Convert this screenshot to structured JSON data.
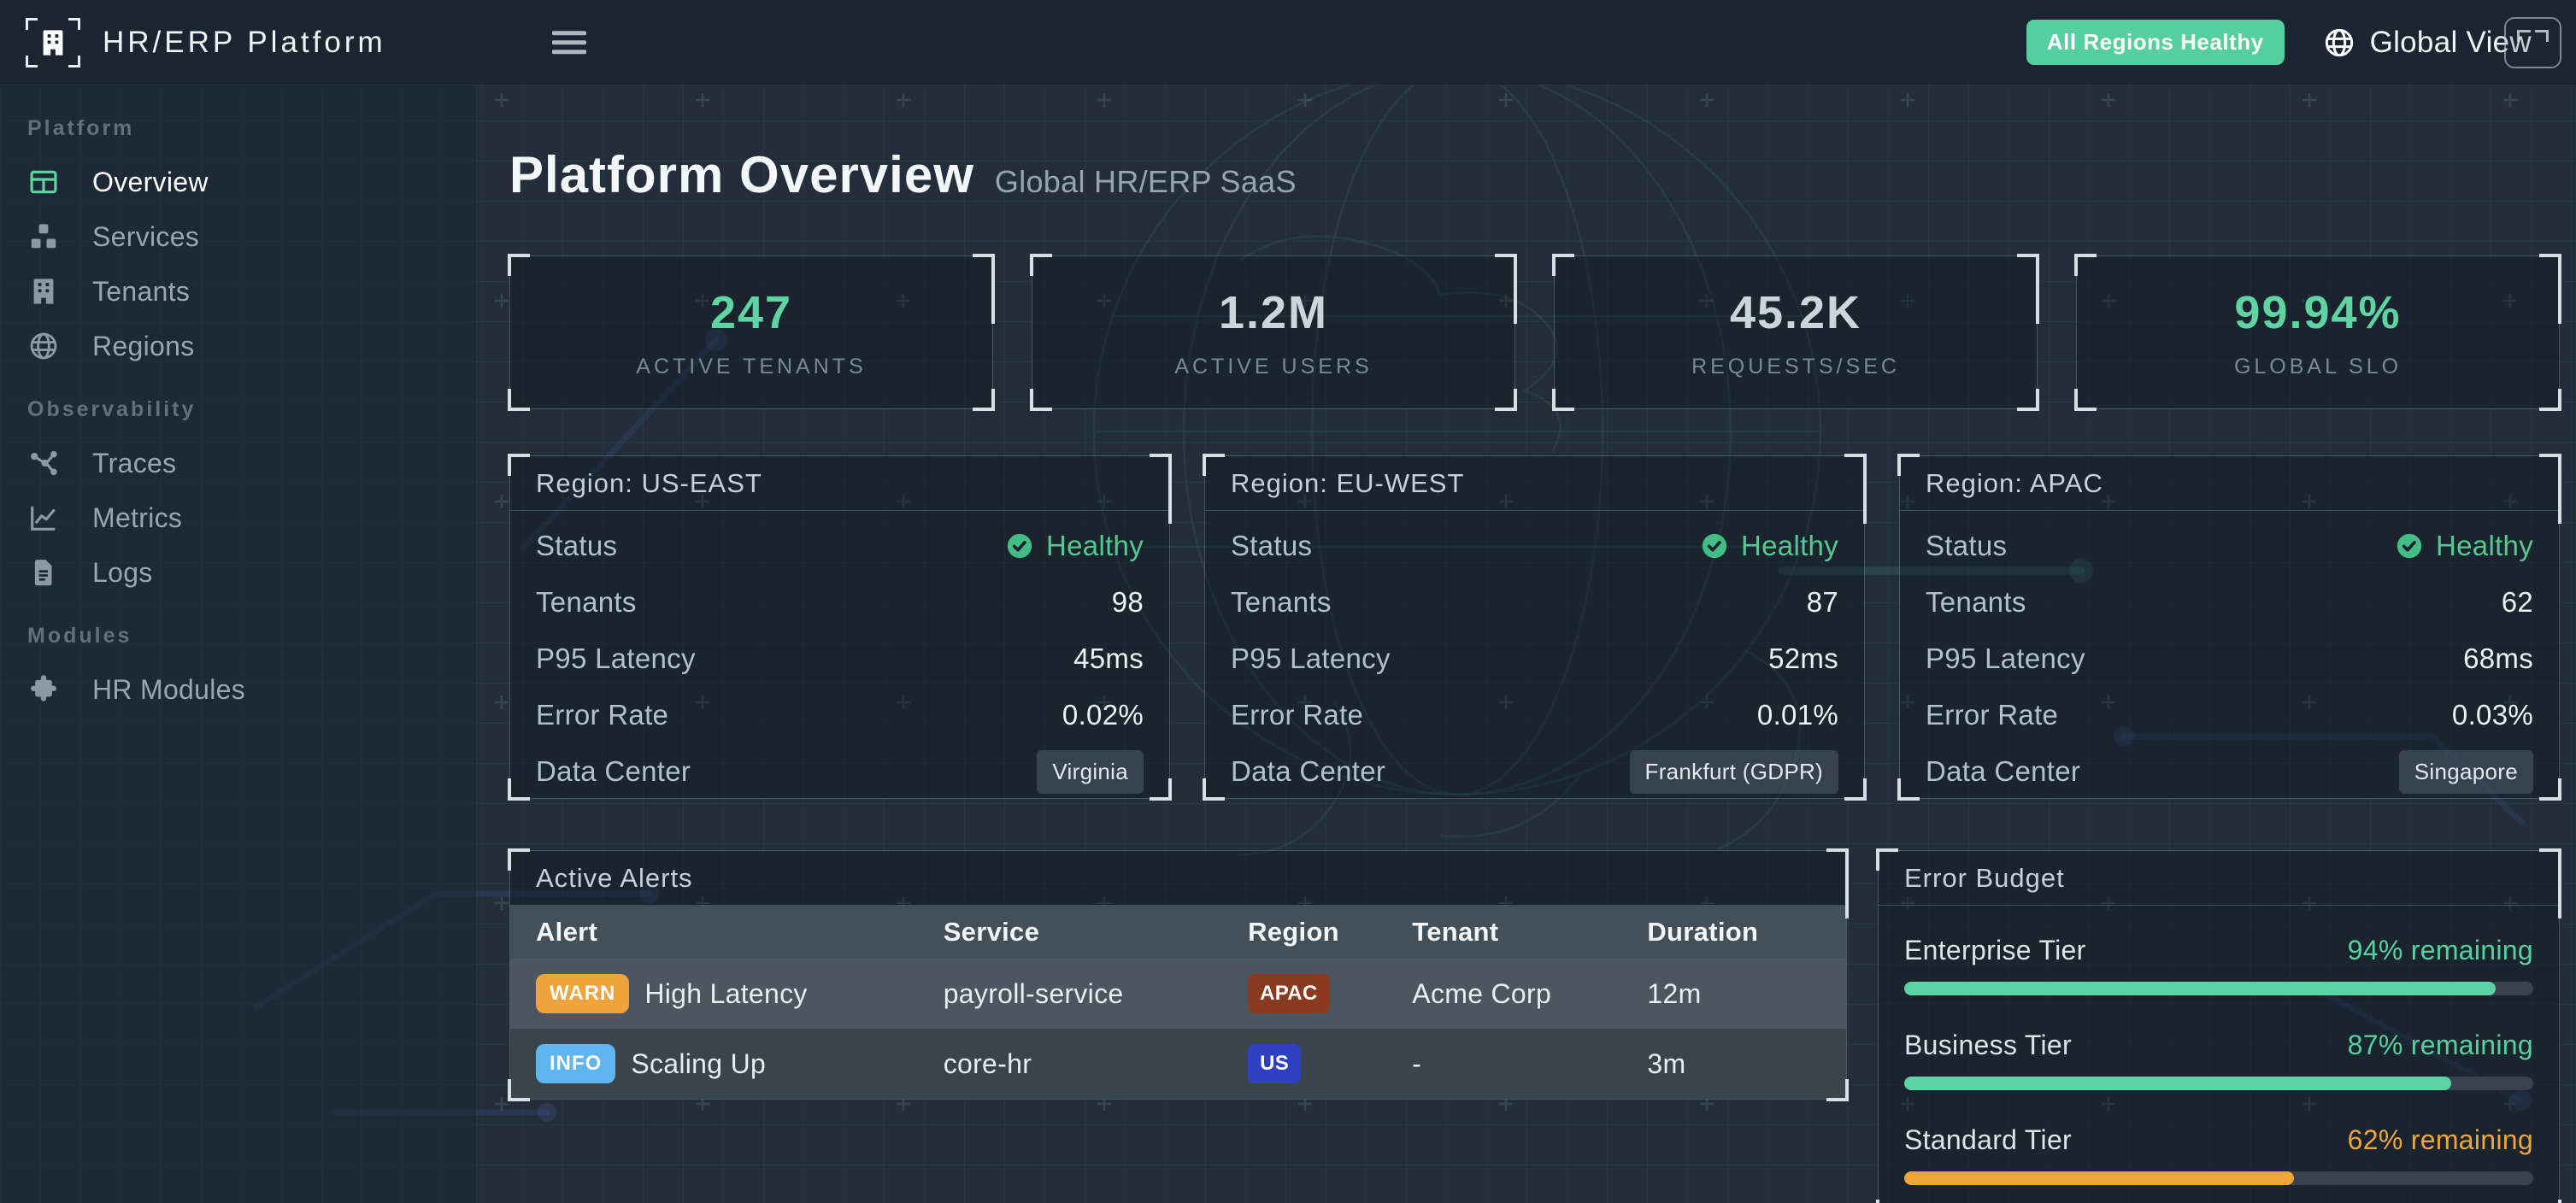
{
  "colors": {
    "accent_green": "#5ed4a2",
    "accent_orange": "#f0a538",
    "info_blue": "#5fb5ee",
    "warn_orange": "#efa33d",
    "badge_apac": "#8a3a20",
    "badge_us": "#2e3fc2",
    "healthy_check": "#41bd85"
  },
  "header": {
    "app_title": "HR/ERP Platform",
    "status_badge": "All Regions Healthy",
    "view_label": "Global View"
  },
  "sidebar": {
    "sections": [
      {
        "label": "Platform",
        "items": [
          {
            "label": "Overview",
            "icon": "grid-icon",
            "active": true
          },
          {
            "label": "Services",
            "icon": "cubes-icon",
            "active": false
          },
          {
            "label": "Tenants",
            "icon": "building-icon",
            "active": false
          },
          {
            "label": "Regions",
            "icon": "globe-icon",
            "active": false
          }
        ]
      },
      {
        "label": "Observability",
        "items": [
          {
            "label": "Traces",
            "icon": "trace-nodes-icon",
            "active": false
          },
          {
            "label": "Metrics",
            "icon": "chart-line-icon",
            "active": false
          },
          {
            "label": "Logs",
            "icon": "file-lines-icon",
            "active": false
          }
        ]
      },
      {
        "label": "Modules",
        "items": [
          {
            "label": "HR Modules",
            "icon": "puzzle-icon",
            "active": false
          }
        ]
      }
    ]
  },
  "page": {
    "title": "Platform Overview",
    "subtitle": "Global HR/ERP SaaS"
  },
  "stats": [
    {
      "value": "247",
      "label": "ACTIVE TENANTS",
      "accent": "green"
    },
    {
      "value": "1.2M",
      "label": "ACTIVE USERS",
      "accent": "white"
    },
    {
      "value": "45.2K",
      "label": "REQUESTS/SEC",
      "accent": "white"
    },
    {
      "value": "99.94%",
      "label": "GLOBAL SLO",
      "accent": "green"
    }
  ],
  "region_row_labels": {
    "status": "Status",
    "tenants": "Tenants",
    "p95": "P95 Latency",
    "error": "Error Rate",
    "dc": "Data Center"
  },
  "regions": [
    {
      "title": "Region: US-EAST",
      "status": "Healthy",
      "tenants": "98",
      "p95_latency": "45ms",
      "error_rate": "0.02%",
      "data_center": "Virginia"
    },
    {
      "title": "Region: EU-WEST",
      "status": "Healthy",
      "tenants": "87",
      "p95_latency": "52ms",
      "error_rate": "0.01%",
      "data_center": "Frankfurt (GDPR)"
    },
    {
      "title": "Region: APAC",
      "status": "Healthy",
      "tenants": "62",
      "p95_latency": "68ms",
      "error_rate": "0.03%",
      "data_center": "Singapore"
    }
  ],
  "alerts": {
    "title": "Active Alerts",
    "columns": [
      "Alert",
      "Service",
      "Region",
      "Tenant",
      "Duration"
    ],
    "rows": [
      {
        "severity": "WARN",
        "alert": "High Latency",
        "service": "payroll-service",
        "region": "APAC",
        "tenant": "Acme Corp",
        "duration": "12m"
      },
      {
        "severity": "INFO",
        "alert": "Scaling Up",
        "service": "core-hr",
        "region": "US",
        "tenant": "-",
        "duration": "3m"
      }
    ]
  },
  "error_budget": {
    "title": "Error Budget",
    "tiers": [
      {
        "label": "Enterprise Tier",
        "remaining": "94% remaining",
        "percent": 94,
        "color": "green"
      },
      {
        "label": "Business Tier",
        "remaining": "87% remaining",
        "percent": 87,
        "color": "green"
      },
      {
        "label": "Standard Tier",
        "remaining": "62% remaining",
        "percent": 62,
        "color": "orange"
      }
    ]
  }
}
